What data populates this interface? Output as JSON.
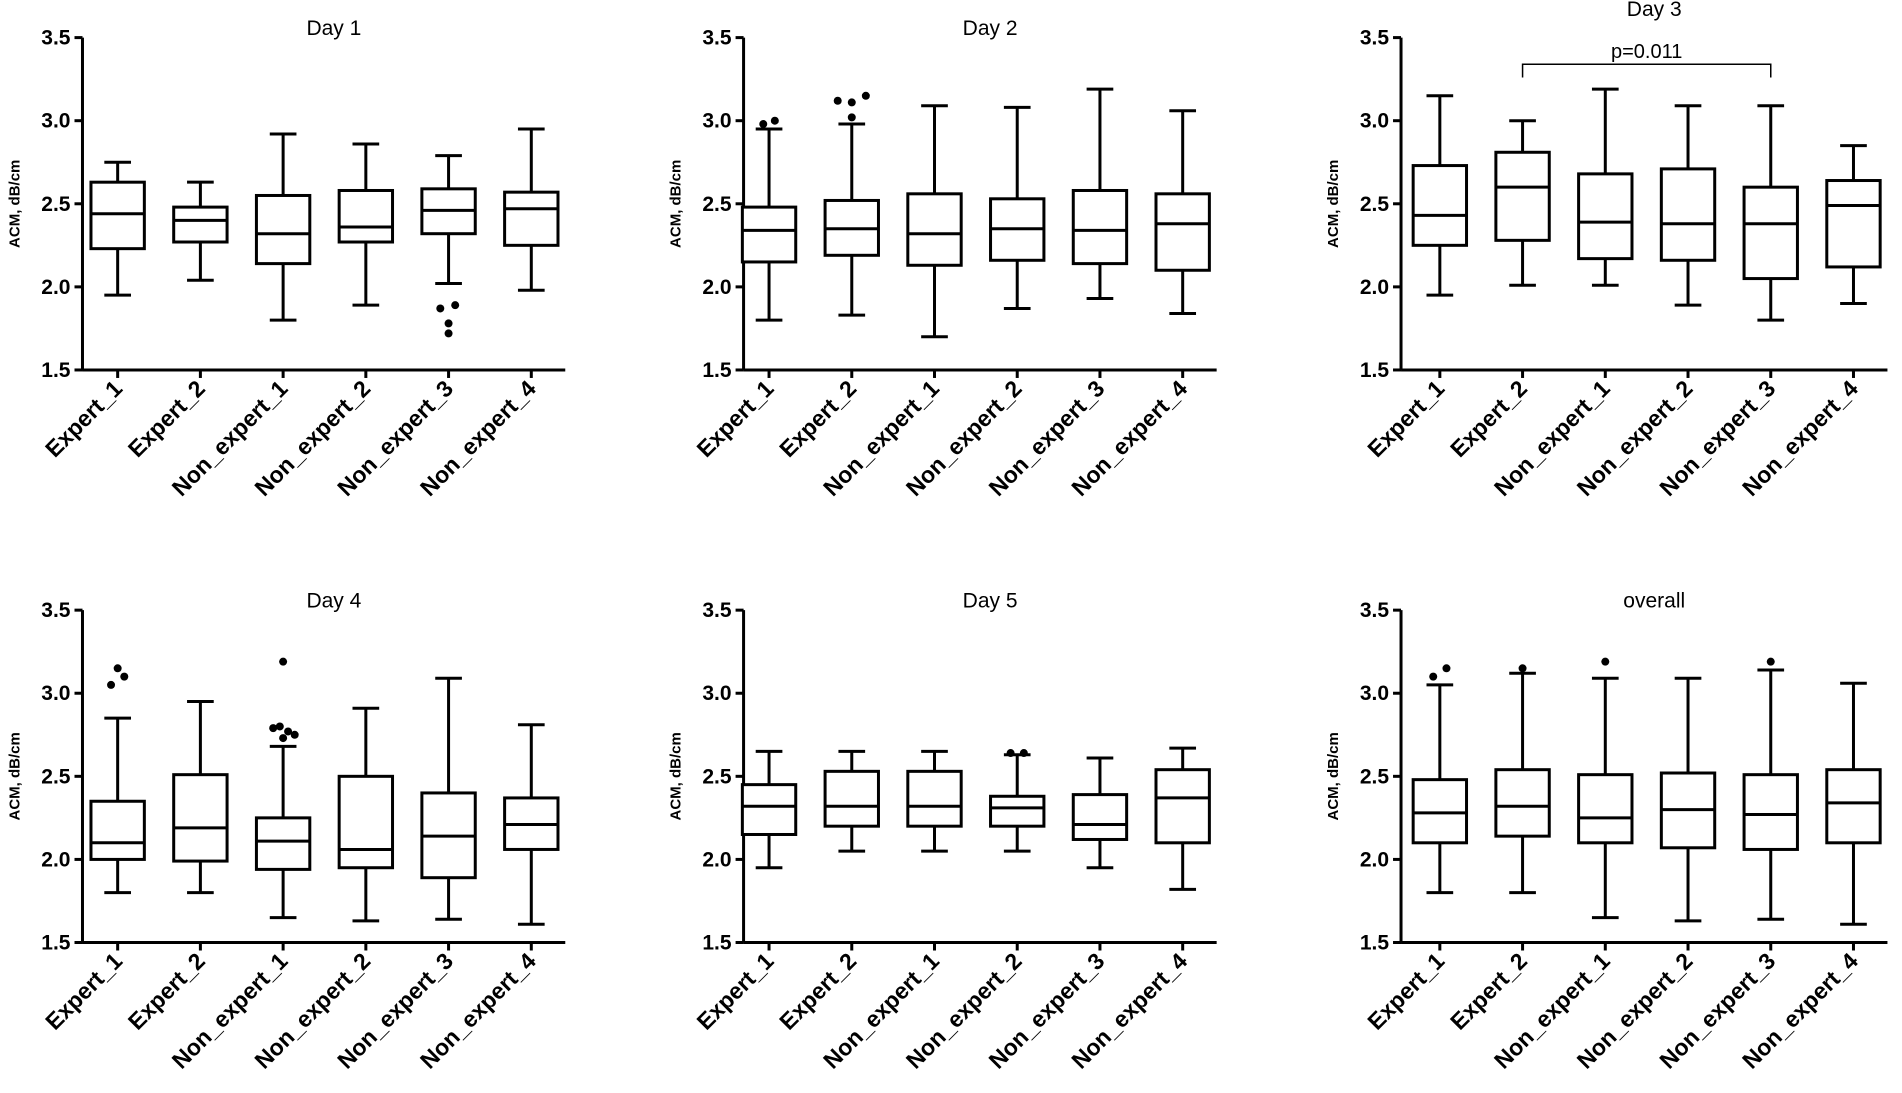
{
  "chart_data": [
    {
      "type": "box",
      "title": "Day 1",
      "ylabel": "ACM, dB/cm",
      "xlabel": "",
      "ylim": [
        1.5,
        3.5
      ],
      "yticks": [
        "1.5",
        "2.0",
        "2.5",
        "3.0",
        "3.5"
      ],
      "categories": [
        "Expert_1",
        "Expert_2",
        "Non_expert_1",
        "Non_expert_2",
        "Non_expert_3",
        "Non_expert_4"
      ],
      "boxes": [
        {
          "min": 1.95,
          "q1": 2.23,
          "median": 2.44,
          "q3": 2.63,
          "max": 2.75,
          "outliers": []
        },
        {
          "min": 2.04,
          "q1": 2.27,
          "median": 2.4,
          "q3": 2.48,
          "max": 2.63,
          "outliers": []
        },
        {
          "min": 1.8,
          "q1": 2.14,
          "median": 2.32,
          "q3": 2.55,
          "max": 2.92,
          "outliers": []
        },
        {
          "min": 1.89,
          "q1": 2.27,
          "median": 2.36,
          "q3": 2.58,
          "max": 2.86,
          "outliers": []
        },
        {
          "min": 2.02,
          "q1": 2.32,
          "median": 2.46,
          "q3": 2.59,
          "max": 2.79,
          "outliers": [
            {
              "x": -0.1,
              "y": 1.87
            },
            {
              "x": 0.08,
              "y": 1.89
            },
            {
              "x": 0.0,
              "y": 1.78
            },
            {
              "x": 0.0,
              "y": 1.72
            }
          ]
        },
        {
          "min": 1.98,
          "q1": 2.25,
          "median": 2.47,
          "q3": 2.57,
          "max": 2.95,
          "outliers": []
        }
      ],
      "annotations": []
    },
    {
      "type": "box",
      "title": "Day 2",
      "ylabel": "ACM, dB/cm",
      "xlabel": "",
      "ylim": [
        1.5,
        3.5
      ],
      "yticks": [
        "1.5",
        "2.0",
        "2.5",
        "3.0",
        "3.5"
      ],
      "categories": [
        "Expert_1",
        "Expert_2",
        "Non_expert_1",
        "Non_expert_2",
        "Non_expert_3",
        "Non_expert_4"
      ],
      "boxes": [
        {
          "min": 1.8,
          "q1": 2.15,
          "median": 2.34,
          "q3": 2.48,
          "max": 2.95,
          "outliers": [
            {
              "x": -0.07,
              "y": 2.98
            },
            {
              "x": 0.07,
              "y": 3.0
            }
          ]
        },
        {
          "min": 1.83,
          "q1": 2.19,
          "median": 2.35,
          "q3": 2.52,
          "max": 2.98,
          "outliers": [
            {
              "x": -0.17,
              "y": 3.12
            },
            {
              "x": 0.0,
              "y": 3.11
            },
            {
              "x": 0.17,
              "y": 3.15
            },
            {
              "x": 0.0,
              "y": 3.02
            }
          ]
        },
        {
          "min": 1.7,
          "q1": 2.13,
          "median": 2.32,
          "q3": 2.56,
          "max": 3.09,
          "outliers": []
        },
        {
          "min": 1.87,
          "q1": 2.16,
          "median": 2.35,
          "q3": 2.53,
          "max": 3.08,
          "outliers": []
        },
        {
          "min": 1.93,
          "q1": 2.14,
          "median": 2.34,
          "q3": 2.58,
          "max": 3.19,
          "outliers": []
        },
        {
          "min": 1.84,
          "q1": 2.1,
          "median": 2.38,
          "q3": 2.56,
          "max": 3.06,
          "outliers": []
        }
      ],
      "annotations": []
    },
    {
      "type": "box",
      "title": "Day 3",
      "ylabel": "ACM, dB/cm",
      "xlabel": "",
      "ylim": [
        1.5,
        3.5
      ],
      "yticks": [
        "1.5",
        "2.0",
        "2.5",
        "3.0",
        "3.5"
      ],
      "categories": [
        "Expert_1",
        "Expert_2",
        "Non_expert_1",
        "Non_expert_2",
        "Non_expert_3",
        "Non_expert_4"
      ],
      "boxes": [
        {
          "min": 1.95,
          "q1": 2.25,
          "median": 2.43,
          "q3": 2.73,
          "max": 3.15,
          "outliers": []
        },
        {
          "min": 2.01,
          "q1": 2.28,
          "median": 2.6,
          "q3": 2.81,
          "max": 3.0,
          "outliers": []
        },
        {
          "min": 2.01,
          "q1": 2.17,
          "median": 2.39,
          "q3": 2.68,
          "max": 3.19,
          "outliers": []
        },
        {
          "min": 1.89,
          "q1": 2.16,
          "median": 2.38,
          "q3": 2.71,
          "max": 3.09,
          "outliers": []
        },
        {
          "min": 1.8,
          "q1": 2.05,
          "median": 2.38,
          "q3": 2.6,
          "max": 3.09,
          "outliers": []
        },
        {
          "min": 1.9,
          "q1": 2.12,
          "median": 2.49,
          "q3": 2.64,
          "max": 2.85,
          "outliers": []
        }
      ],
      "annotations": [
        {
          "text": "p=0.011",
          "from_category": 1,
          "to_category": 4,
          "y": 3.34,
          "tick_bottom": 3.26
        }
      ]
    },
    {
      "type": "box",
      "title": "Day 4",
      "ylabel": "ACM, dB/cm",
      "xlabel": "",
      "ylim": [
        1.5,
        3.5
      ],
      "yticks": [
        "1.5",
        "2.0",
        "2.5",
        "3.0",
        "3.5"
      ],
      "categories": [
        "Expert_1",
        "Expert_2",
        "Non_expert_1",
        "Non_expert_2",
        "Non_expert_3",
        "Non_expert_4"
      ],
      "boxes": [
        {
          "min": 1.8,
          "q1": 2.0,
          "median": 2.1,
          "q3": 2.35,
          "max": 2.85,
          "outliers": [
            {
              "x": -0.08,
              "y": 3.05
            },
            {
              "x": 0.08,
              "y": 3.1
            },
            {
              "x": 0.0,
              "y": 3.15
            }
          ]
        },
        {
          "min": 1.8,
          "q1": 1.99,
          "median": 2.19,
          "q3": 2.51,
          "max": 2.95,
          "outliers": []
        },
        {
          "min": 1.65,
          "q1": 1.94,
          "median": 2.11,
          "q3": 2.25,
          "max": 2.68,
          "outliers": [
            {
              "x": 0.0,
              "y": 3.19
            },
            {
              "x": -0.12,
              "y": 2.79
            },
            {
              "x": -0.04,
              "y": 2.8
            },
            {
              "x": 0.06,
              "y": 2.77
            },
            {
              "x": 0.14,
              "y": 2.75
            },
            {
              "x": 0.0,
              "y": 2.73
            }
          ]
        },
        {
          "min": 1.63,
          "q1": 1.95,
          "median": 2.06,
          "q3": 2.5,
          "max": 2.91,
          "outliers": []
        },
        {
          "min": 1.64,
          "q1": 1.89,
          "median": 2.14,
          "q3": 2.4,
          "max": 3.09,
          "outliers": []
        },
        {
          "min": 1.61,
          "q1": 2.06,
          "median": 2.21,
          "q3": 2.37,
          "max": 2.81,
          "outliers": []
        }
      ],
      "annotations": []
    },
    {
      "type": "box",
      "title": "Day 5",
      "ylabel": "ACM, dB/cm",
      "xlabel": "",
      "ylim": [
        1.5,
        3.5
      ],
      "yticks": [
        "1.5",
        "2.0",
        "2.5",
        "3.0",
        "3.5"
      ],
      "categories": [
        "Expert_1",
        "Expert_2",
        "Non_expert_1",
        "Non_expert_2",
        "Non_expert_3",
        "Non_expert_4"
      ],
      "boxes": [
        {
          "min": 1.95,
          "q1": 2.15,
          "median": 2.32,
          "q3": 2.45,
          "max": 2.65,
          "outliers": []
        },
        {
          "min": 2.05,
          "q1": 2.2,
          "median": 2.32,
          "q3": 2.53,
          "max": 2.65,
          "outliers": []
        },
        {
          "min": 2.05,
          "q1": 2.2,
          "median": 2.32,
          "q3": 2.53,
          "max": 2.65,
          "outliers": []
        },
        {
          "min": 2.05,
          "q1": 2.2,
          "median": 2.31,
          "q3": 2.38,
          "max": 2.63,
          "outliers": [
            {
              "x": -0.08,
              "y": 2.64
            },
            {
              "x": 0.08,
              "y": 2.64
            }
          ]
        },
        {
          "min": 1.95,
          "q1": 2.12,
          "median": 2.21,
          "q3": 2.39,
          "max": 2.61,
          "outliers": []
        },
        {
          "min": 1.82,
          "q1": 2.1,
          "median": 2.37,
          "q3": 2.54,
          "max": 2.67,
          "outliers": []
        }
      ],
      "annotations": []
    },
    {
      "type": "box",
      "title": "overall",
      "ylabel": "ACM, dB/cm",
      "xlabel": "",
      "ylim": [
        1.5,
        3.5
      ],
      "yticks": [
        "1.5",
        "2.0",
        "2.5",
        "3.0",
        "3.5"
      ],
      "categories": [
        "Expert_1",
        "Expert_2",
        "Non_expert_1",
        "Non_expert_2",
        "Non_expert_3",
        "Non_expert_4"
      ],
      "boxes": [
        {
          "min": 1.8,
          "q1": 2.1,
          "median": 2.28,
          "q3": 2.48,
          "max": 3.05,
          "outliers": [
            {
              "x": -0.08,
              "y": 3.1
            },
            {
              "x": 0.08,
              "y": 3.15
            }
          ]
        },
        {
          "min": 1.8,
          "q1": 2.14,
          "median": 2.32,
          "q3": 2.54,
          "max": 3.12,
          "outliers": [
            {
              "x": 0.0,
              "y": 3.15
            }
          ]
        },
        {
          "min": 1.65,
          "q1": 2.1,
          "median": 2.25,
          "q3": 2.51,
          "max": 3.09,
          "outliers": [
            {
              "x": 0.0,
              "y": 3.19
            }
          ]
        },
        {
          "min": 1.63,
          "q1": 2.07,
          "median": 2.3,
          "q3": 2.52,
          "max": 3.09,
          "outliers": []
        },
        {
          "min": 1.64,
          "q1": 2.06,
          "median": 2.27,
          "q3": 2.51,
          "max": 3.14,
          "outliers": [
            {
              "x": 0.0,
              "y": 3.19
            }
          ]
        },
        {
          "min": 1.61,
          "q1": 2.1,
          "median": 2.34,
          "q3": 2.54,
          "max": 3.06,
          "outliers": []
        }
      ],
      "annotations": []
    }
  ]
}
